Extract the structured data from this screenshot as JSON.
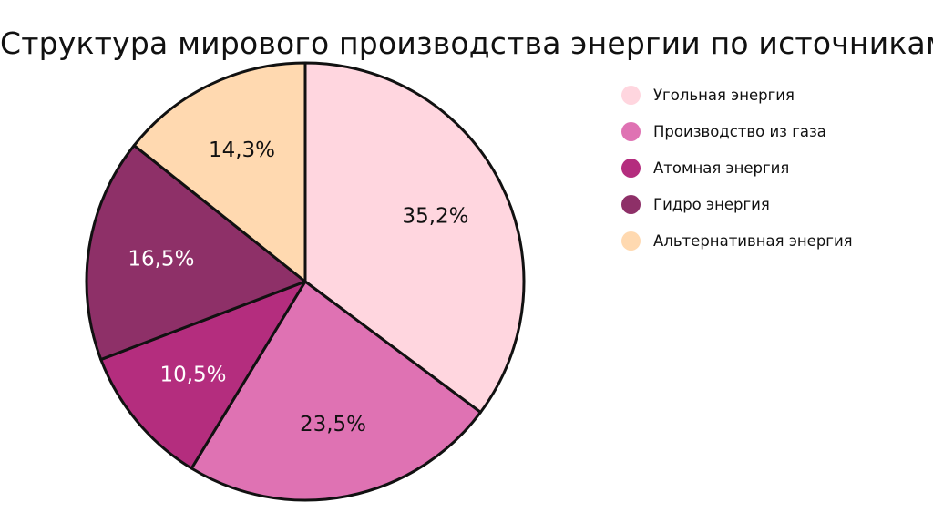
{
  "chart_data": {
    "type": "pie",
    "title": "Структура мирового производства энергии по источникам",
    "slices": [
      {
        "label": "Угольная энергия",
        "value": 35.2,
        "display": "35,2%",
        "color": "#FFD6DF",
        "label_color": "#111111"
      },
      {
        "label": "Производство из газа",
        "value": 23.5,
        "display": "23,5%",
        "color": "#DF72B3",
        "label_color": "#111111"
      },
      {
        "label": "Атомная энергия",
        "value": 10.5,
        "display": "10,5%",
        "color": "#B42D7E",
        "label_color": "#ffffff"
      },
      {
        "label": "Гидро энергия",
        "value": 16.5,
        "display": "16,5%",
        "color": "#8E3068",
        "label_color": "#ffffff"
      },
      {
        "label": "Альтернативная энергия",
        "value": 14.3,
        "display": "14,3%",
        "color": "#FFD9B0",
        "label_color": "#111111"
      }
    ],
    "legend_position": "right"
  }
}
